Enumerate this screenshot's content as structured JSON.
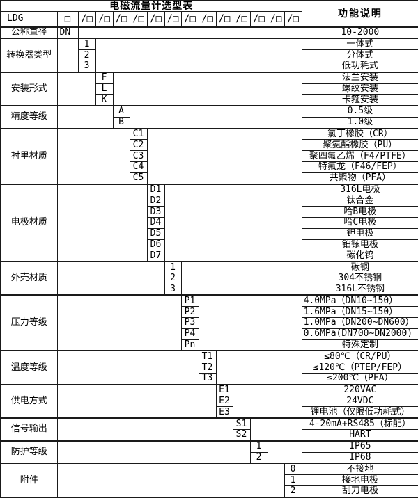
{
  "title": "电磁流量计选型表",
  "function_column_header": "功能说明",
  "model_row": {
    "prefix": "LDG",
    "base_box": "□",
    "code_box": "/□",
    "code_box_count": 13
  },
  "diameter_row": {
    "label": "公称直径",
    "code": "DN",
    "description": "10-2000"
  },
  "sections": [
    {
      "label": "转换器类型",
      "column": 1,
      "options": [
        {
          "code": "1",
          "desc": "一体式"
        },
        {
          "code": "2",
          "desc": "分体式"
        },
        {
          "code": "3",
          "desc": "低功耗式"
        }
      ]
    },
    {
      "label": "安装形式",
      "column": 2,
      "options": [
        {
          "code": "F",
          "desc": "法兰安装"
        },
        {
          "code": "L",
          "desc": "螺纹安装"
        },
        {
          "code": "K",
          "desc": "卡箍安装"
        }
      ]
    },
    {
      "label": "精度等级",
      "column": 3,
      "options": [
        {
          "code": "A",
          "desc": "0.5级"
        },
        {
          "code": "B",
          "desc": "1.0级"
        }
      ]
    },
    {
      "label": "衬里材质",
      "column": 4,
      "options": [
        {
          "code": "C1",
          "desc": "氯丁橡胶（CR）"
        },
        {
          "code": "C2",
          "desc": "聚氨酯橡胶（PU）"
        },
        {
          "code": "C3",
          "desc": "聚四氟乙烯（F4/PTFE）"
        },
        {
          "code": "C4",
          "desc": "特氟龙（F46/FEP）"
        },
        {
          "code": "C5",
          "desc": "共聚物（PFA）"
        }
      ]
    },
    {
      "label": "电极材质",
      "column": 5,
      "options": [
        {
          "code": "D1",
          "desc": "316L电极"
        },
        {
          "code": "D2",
          "desc": "钛合金"
        },
        {
          "code": "D3",
          "desc": "哈B电极"
        },
        {
          "code": "D4",
          "desc": "哈C电极"
        },
        {
          "code": "D5",
          "desc": "钽电极"
        },
        {
          "code": "D6",
          "desc": "铂铱电极"
        },
        {
          "code": "D7",
          "desc": "碳化钨"
        }
      ]
    },
    {
      "label": "外壳材质",
      "column": 6,
      "options": [
        {
          "code": "1",
          "desc": "碳钢"
        },
        {
          "code": "2",
          "desc": "304不锈钢"
        },
        {
          "code": "3",
          "desc": "316L不锈钢"
        }
      ]
    },
    {
      "label": "压力等级",
      "column": 7,
      "options": [
        {
          "code": "P1",
          "desc": "4.0MPa（DN10~150）",
          "align": "left"
        },
        {
          "code": "P2",
          "desc": "1.6MPa（DN15~150）",
          "align": "left"
        },
        {
          "code": "P3",
          "desc": "1.0MPa（DN200~DN600）",
          "align": "left"
        },
        {
          "code": "P4",
          "desc": "0.6MPa(DN700~DN2000)",
          "align": "left"
        },
        {
          "code": "Pn",
          "desc": "特殊定制"
        }
      ]
    },
    {
      "label": "温度等级",
      "column": 8,
      "options": [
        {
          "code": "T1",
          "desc": "≤80℃（CR/PU）"
        },
        {
          "code": "T2",
          "desc": "≤120℃（PTEP/FEP）"
        },
        {
          "code": "T3",
          "desc": "≤200℃（PFA）"
        }
      ]
    },
    {
      "label": "供电方式",
      "column": 9,
      "options": [
        {
          "code": "E1",
          "desc": "220VAC"
        },
        {
          "code": "E2",
          "desc": "24VDC"
        },
        {
          "code": "E3",
          "desc": "锂电池（仅限低功耗式）"
        }
      ]
    },
    {
      "label": "信号输出",
      "column": 10,
      "options": [
        {
          "code": "S1",
          "desc": "4-20mA+RS485（标配）"
        },
        {
          "code": "S2",
          "desc": "HART"
        }
      ]
    },
    {
      "label": "防护等级",
      "column": 11,
      "options": [
        {
          "code": "1",
          "desc": "IP65"
        },
        {
          "code": "2",
          "desc": "IP68"
        }
      ]
    },
    {
      "label": "附件",
      "column": 13,
      "options": [
        {
          "code": "0",
          "desc": "不接地"
        },
        {
          "code": "1",
          "desc": "接地电极"
        },
        {
          "code": "2",
          "desc": "刮刀电极"
        }
      ]
    }
  ]
}
